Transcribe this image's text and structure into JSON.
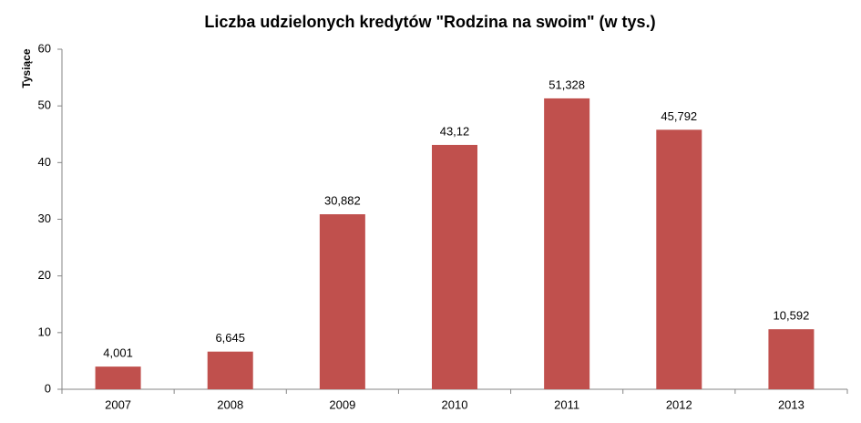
{
  "chart_data": {
    "type": "bar",
    "title": "Liczba udzielonych kredytów \"Rodzina na swoim\" (w tys.)",
    "y_label": "Tysiące",
    "categories": [
      "2007",
      "2008",
      "2009",
      "2010",
      "2011",
      "2012",
      "2013"
    ],
    "values": [
      4.001,
      6.645,
      30.882,
      43.12,
      51.328,
      45.792,
      10.592
    ],
    "value_labels": [
      "4,001",
      "6,645",
      "30,882",
      "43,12",
      "51,328",
      "45,792",
      "10,592"
    ],
    "color": "#c0504d",
    "ylim": [
      0,
      60
    ],
    "yticks": [
      0,
      10,
      20,
      30,
      40,
      50,
      60
    ],
    "grid": false
  }
}
